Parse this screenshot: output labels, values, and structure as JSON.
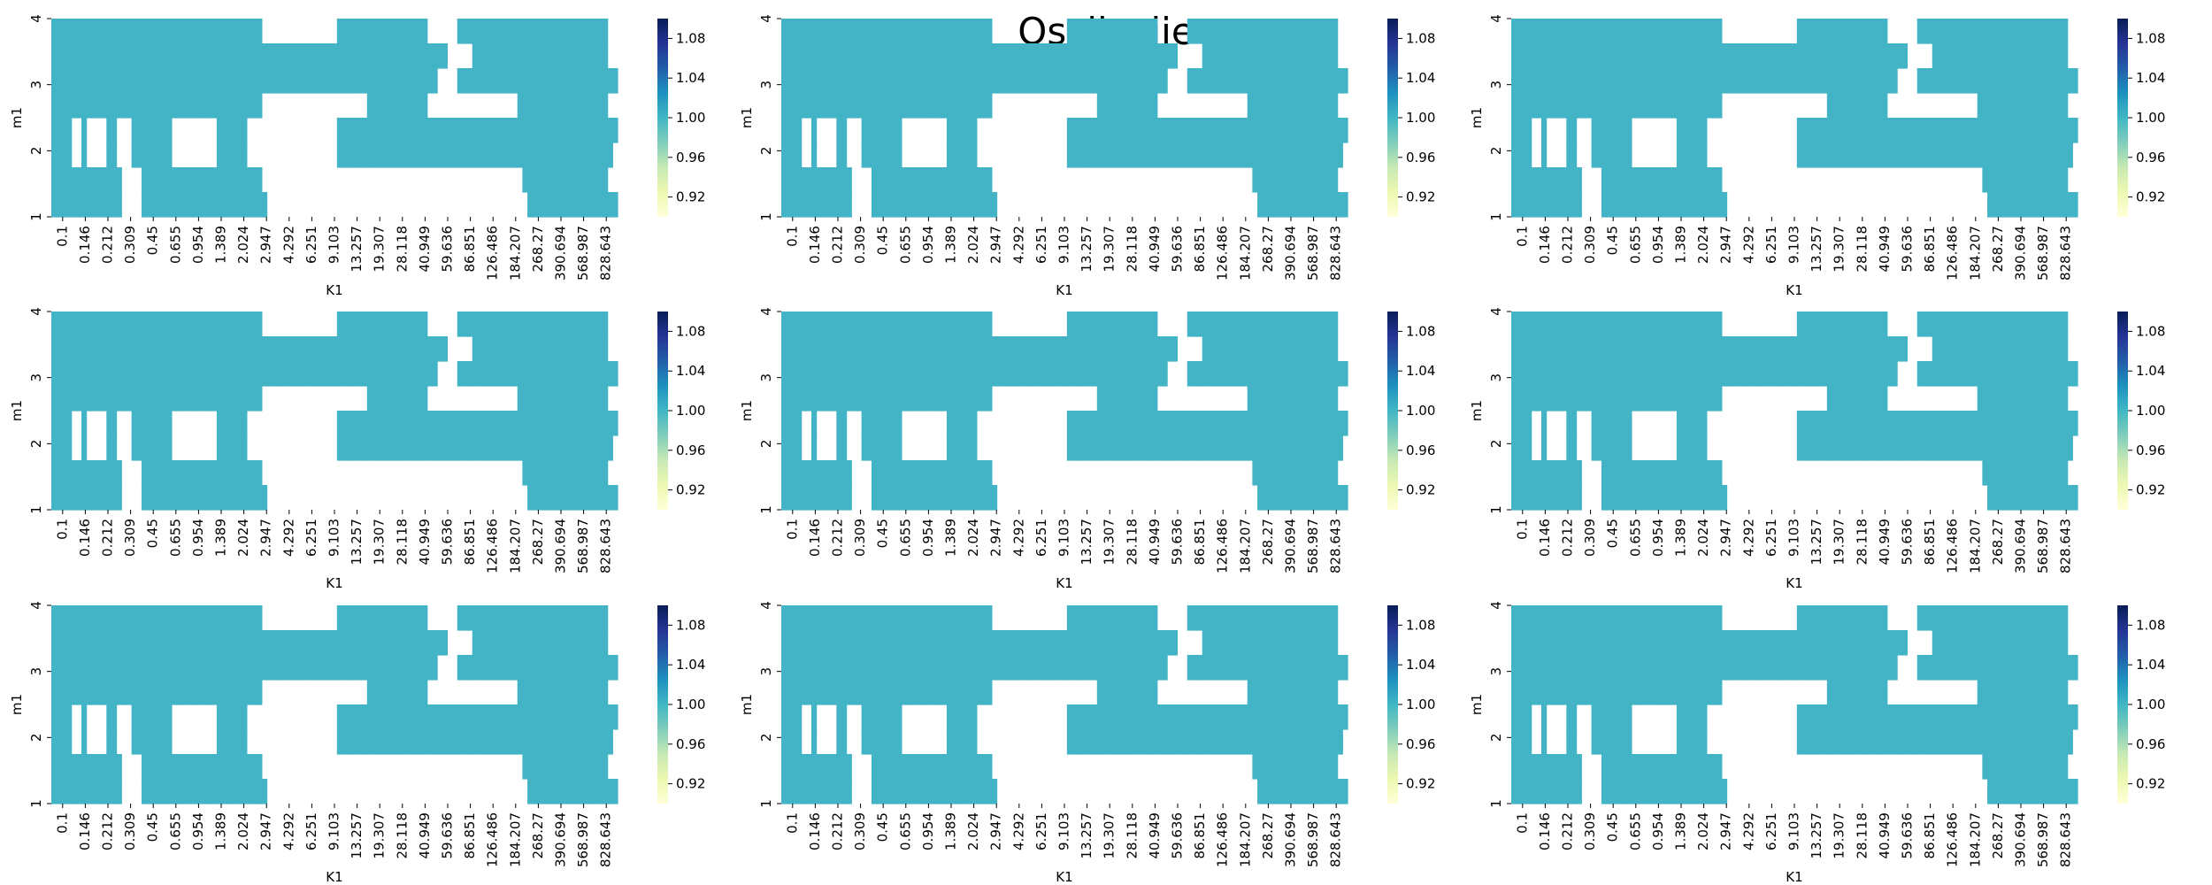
{
  "title": "Oscilacije",
  "colors": {
    "cell": "#43b4c6",
    "blank": "#ffffff"
  },
  "chart_data": {
    "type": "heatmap",
    "x_tick_labels": [
      "0.1",
      "0.146",
      "0.212",
      "0.309",
      "0.45",
      "0.655",
      "0.954",
      "1.389",
      "2.024",
      "2.947",
      "4.292",
      "6.251",
      "9.103",
      "13.257",
      "19.307",
      "28.118",
      "40.949",
      "59.636",
      "86.851",
      "126.486",
      "184.207",
      "268.27",
      "390.694",
      "568.987",
      "828.643"
    ],
    "y_tick_labels": [
      "1",
      "2",
      "3",
      "4"
    ],
    "colorbar": {
      "min": 0.9,
      "max": 1.1,
      "ticks": [
        "0.92",
        "0.96",
        "1.00",
        "1.04",
        "1.08"
      ],
      "colormap": "YlGnBu"
    },
    "panels": [
      {
        "xlabel": "K1",
        "ylabel": "m1",
        "rows": [
          "111111111111111111111111111111111111111111000000000000000111111111111111111000000111111111111111111111111111111",
          "111111111111111111111111111111111111111111111111111111111111111111111111111111100000111111111111111111111111111",
          "11111111111111111111111111111111111111111111111111111111111111111111111111111000011111111111111111111111111111111",
          "111111111111111111111111111111111111111111000000000000000000000111111111111000000000000000000111111111111111111",
          "11110010000110001111111100000000011111100000000000000000011111111111111111111111111111111111111111111111111111111",
          "1111001000011000111111110000000001111110000000000000000001111111111111111111111111111111111111111111111111111111",
          "111111111111110000111111111111111111111111000000000000000000000000000000000000000000000000000011111111111111111",
          "11111111111111000011111111111111111111111110000000000000000000000000000000000000000000000000000111111111111111111"
        ]
      }
    ]
  }
}
